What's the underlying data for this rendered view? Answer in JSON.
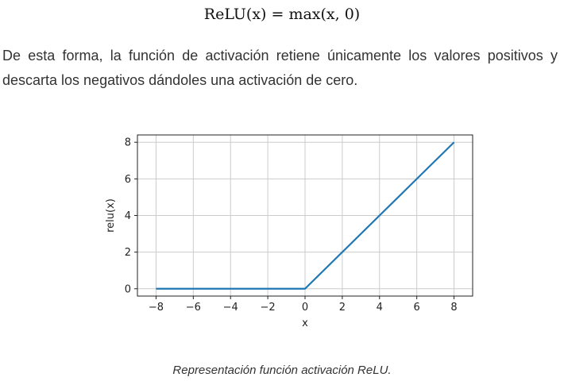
{
  "formula": "ReLU(x) = max(x, 0)",
  "paragraph": "De esta forma, la función de activación retiene únicamente los valores positivos y descarta los negativos dándoles una activación de cero.",
  "caption": "Representación función activación ReLU.",
  "chart_data": {
    "type": "line",
    "title": "",
    "xlabel": "x",
    "ylabel": "relu(x)",
    "xlim": [
      -9,
      9
    ],
    "ylim": [
      -0.4,
      8.4
    ],
    "xticks": [
      -8,
      -6,
      -4,
      -2,
      0,
      2,
      4,
      6,
      8
    ],
    "yticks": [
      0,
      2,
      4,
      6,
      8
    ],
    "grid": true,
    "series": [
      {
        "color": "#1f77b4",
        "x": [
          -8,
          0,
          8
        ],
        "y": [
          0,
          0,
          8
        ]
      }
    ]
  }
}
